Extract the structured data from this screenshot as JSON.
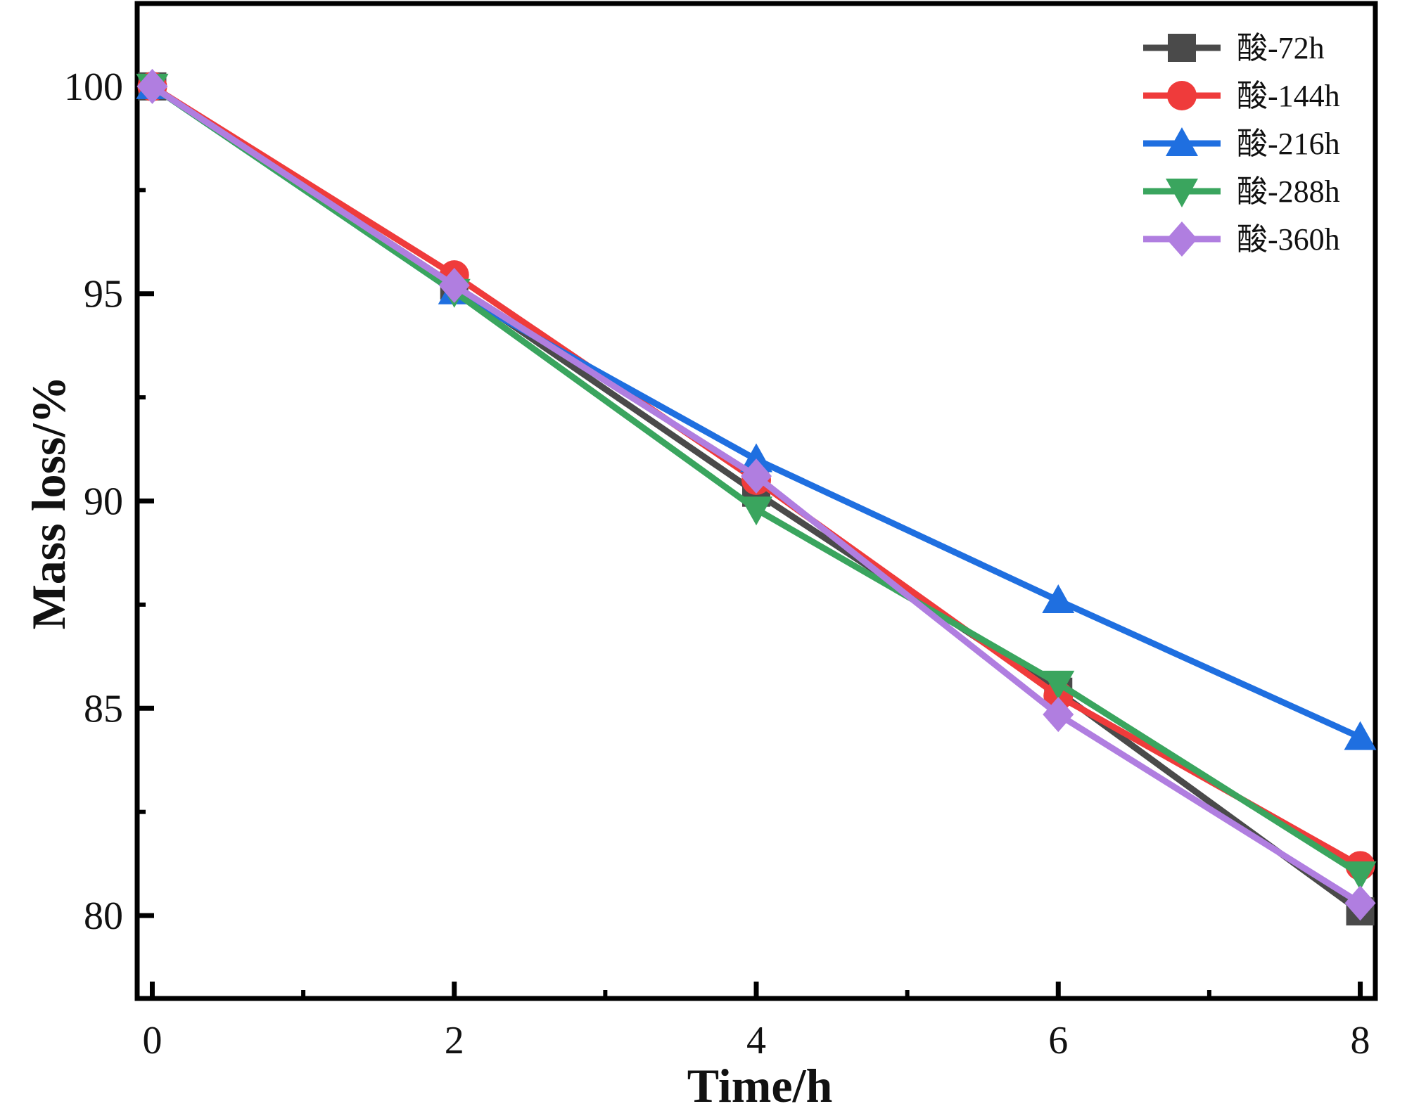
{
  "chart_data": {
    "type": "line",
    "title": "",
    "xlabel": "Time/h",
    "ylabel": "Mass loss/%",
    "x": [
      0,
      2,
      4,
      6,
      8
    ],
    "xlim": [
      -0.1,
      8.1
    ],
    "ylim": [
      78.0,
      102.0
    ],
    "xticks": [
      0,
      2,
      4,
      6,
      8
    ],
    "yticks": [
      80,
      85,
      90,
      95,
      100
    ],
    "xtick_labels": [
      "0",
      "2",
      "4",
      "6",
      "8"
    ],
    "ytick_labels": [
      "80",
      "85",
      "90",
      "95",
      "100"
    ],
    "grid": false,
    "legend_position": "top-right",
    "series": [
      {
        "name": "酸-72h",
        "color": "#4a4a4a",
        "marker": "square",
        "values": [
          100.0,
          95.2,
          90.2,
          85.4,
          80.1
        ]
      },
      {
        "name": "酸-144h",
        "color": "#ef3b3b",
        "marker": "circle",
        "values": [
          100.0,
          95.45,
          90.5,
          85.3,
          81.2
        ]
      },
      {
        "name": "酸-216h",
        "color": "#1f6fe0",
        "marker": "triangle-up",
        "values": [
          100.0,
          95.05,
          91.0,
          87.6,
          84.3
        ]
      },
      {
        "name": "酸-288h",
        "color": "#3aa55e",
        "marker": "triangle-down",
        "values": [
          100.0,
          95.05,
          89.8,
          85.6,
          81.0
        ]
      },
      {
        "name": "酸-360h",
        "color": "#b07ee0",
        "marker": "diamond",
        "values": [
          100.0,
          95.2,
          90.6,
          84.85,
          80.3
        ]
      }
    ]
  }
}
